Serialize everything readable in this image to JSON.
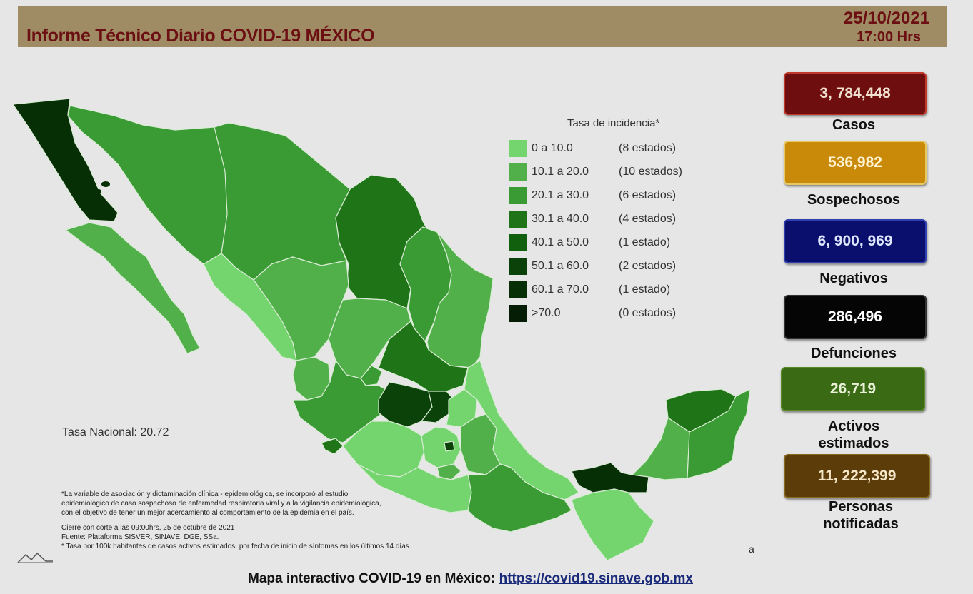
{
  "header": {
    "title": "Informe Técnico Diario COVID-19 MÉXICO",
    "date": "25/10/2021",
    "time": "17:00 Hrs"
  },
  "legend": {
    "title": "Tasa de incidencia*",
    "items": [
      {
        "range": "0   a  10.0",
        "count": "(8 estados)",
        "color": "#74d46e"
      },
      {
        "range": "10.1 a  20.0",
        "count": "(10 estados)",
        "color": "#52b04a"
      },
      {
        "range": "20.1 a  30.0",
        "count": "(6 estados)",
        "color": "#3a9a33"
      },
      {
        "range": "30.1 a  40.0",
        "count": "(4 estados)",
        "color": "#1f7418"
      },
      {
        "range": "40.1 a  50.0",
        "count": "(1 estado)",
        "color": "#11600e"
      },
      {
        "range": "50.1 a  60.0",
        "count": "(2 estados)",
        "color": "#0a4209"
      },
      {
        "range": "60.1 a  70.0",
        "count": "(1 estado)",
        "color": "#062f06"
      },
      {
        "range": ">70.0",
        "count": "(0 estados)",
        "color": "#041d04"
      }
    ]
  },
  "tasa_nacional": "Tasa Nacional: 20.72",
  "notes": [
    "*La variable de asociación y dictaminación clínica - epidemiológica, se incorporó al estudio",
    "epidemiológico de caso sospechoso de enfermedad respiratoria viral y a la vigilancia epidemiológica,",
    "con el objetivo de tener un mejor acercamiento al comportamiento de la epidemia en el país.",
    "Cierre con corte a las 09:00hrs, 25 de octubre de 2021",
    "Fuente: Plataforma SISVER, SINAVE, DGE, SSa.",
    "* Tasa por 100k habitantes de casos activos estimados, por fecha de inicio de síntomas en los últimos 14 días."
  ],
  "stats": [
    {
      "value": "3, 784,448",
      "label": "Casos",
      "bg": "#6e0e0e",
      "fg": "#f0e0d0",
      "border": "#c0392b"
    },
    {
      "value": "536,982",
      "label": "Sospechosos",
      "bg": "#c98a0a",
      "fg": "#fff3d0",
      "border": "#e8c860"
    },
    {
      "value": "6, 900, 969",
      "label": "Negativos",
      "bg": "#0a0f6e",
      "fg": "#e0e8ff",
      "border": "#3040b0"
    },
    {
      "value": "286,496",
      "label": "Defunciones",
      "bg": "#050505",
      "fg": "#ffffff",
      "border": "#333333"
    },
    {
      "value": "26,719",
      "label": "Activos estimados",
      "bg": "#3a6a14",
      "fg": "#e8f0d8",
      "border": "#5a8a2a"
    },
    {
      "value": "11, 222,399",
      "label": "Personas notificadas",
      "bg": "#5c3c08",
      "fg": "#f5e6c8",
      "border": "#8a6a20"
    }
  ],
  "footer": {
    "text": "Mapa interactivo COVID-19 en México: ",
    "link": "https://covid19.sinave.gob.mx"
  },
  "stray_mark": "a"
}
